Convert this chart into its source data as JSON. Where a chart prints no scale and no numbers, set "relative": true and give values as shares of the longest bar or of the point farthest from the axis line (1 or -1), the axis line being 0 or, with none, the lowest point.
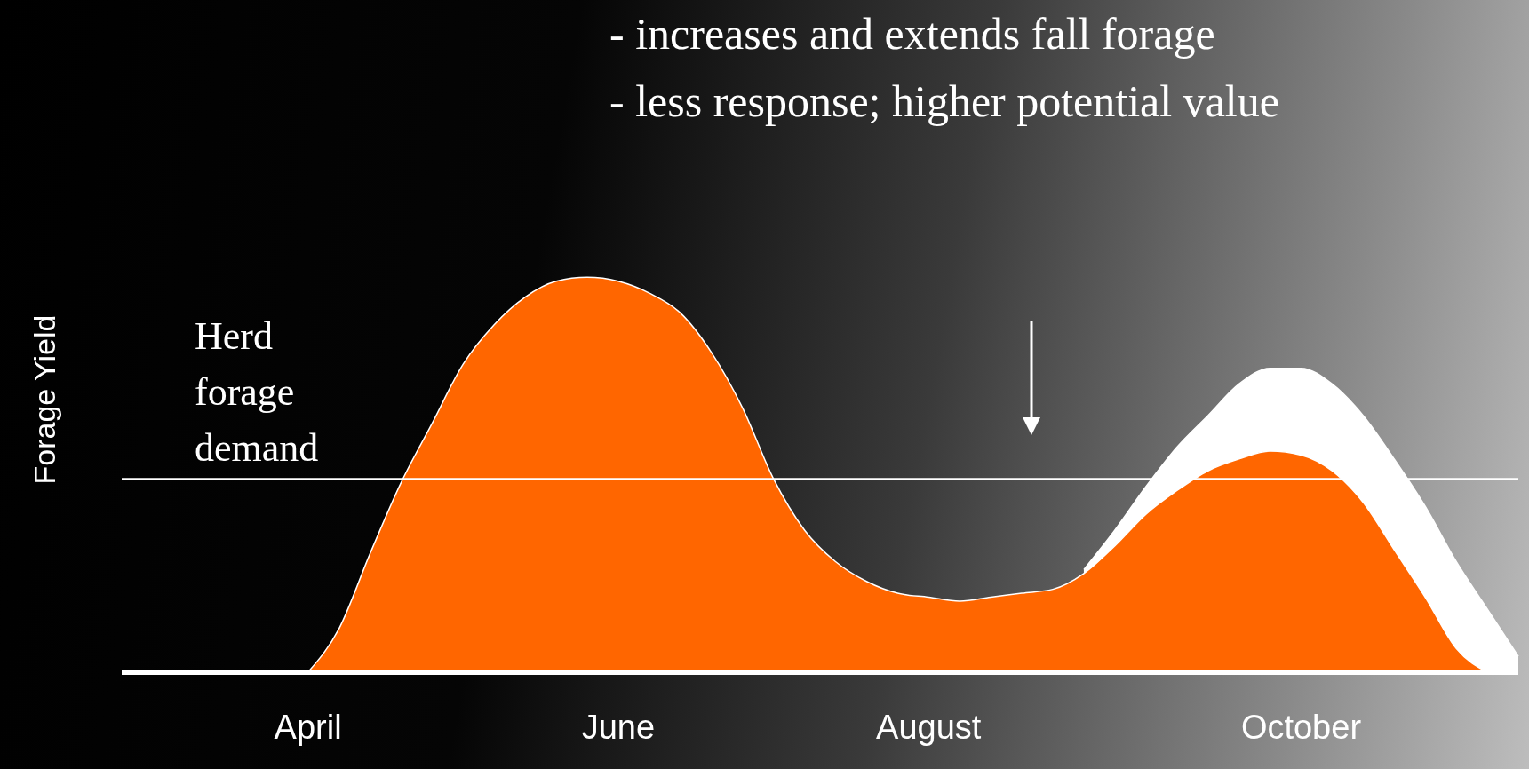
{
  "chart_data": {
    "type": "area",
    "relative": true,
    "ylabel": "Forage Yield",
    "categories": [
      null,
      null,
      null,
      null,
      null,
      null,
      "April",
      null,
      null,
      null,
      null,
      null,
      null,
      null,
      null,
      null,
      "June",
      null,
      null,
      null,
      null,
      null,
      null,
      null,
      null,
      null,
      "August",
      null,
      null,
      null,
      null,
      null,
      null,
      null,
      null,
      null,
      null,
      null,
      "October",
      null,
      null,
      null,
      null,
      null,
      null,
      null
    ],
    "series": [
      {
        "color": "#ffffff",
        "values": [
          null,
          null,
          null,
          null,
          null,
          null,
          null,
          null,
          null,
          null,
          null,
          null,
          null,
          null,
          null,
          null,
          null,
          null,
          null,
          null,
          null,
          null,
          null,
          null,
          null,
          null,
          null,
          null,
          null,
          null,
          null,
          0.26,
          0.36,
          0.47,
          0.57,
          0.65,
          0.73,
          0.77,
          0.77,
          0.73,
          0.65,
          0.54,
          0.42,
          0.28,
          0.16,
          0.04
        ]
      },
      {
        "color": "#ff6600",
        "values": [
          null,
          null,
          null,
          null,
          null,
          null,
          0,
          0.11,
          0.3,
          0.48,
          0.63,
          0.78,
          0.88,
          0.95,
          0.99,
          1,
          0.99,
          0.96,
          0.91,
          0.81,
          0.67,
          0.49,
          0.36,
          0.28,
          0.23,
          0.2,
          0.19,
          0.18,
          0.19,
          0.2,
          0.21,
          0.25,
          0.32,
          0.4,
          0.46,
          0.51,
          0.54,
          0.56,
          0.55,
          0.51,
          0.43,
          0.31,
          0.19,
          0.06,
          0,
          null
        ]
      }
    ],
    "ref_lines": [
      {
        "axis": "y",
        "value": 0.49,
        "label": "Herd forage demand",
        "color": "#ffffff"
      }
    ],
    "annotations": [
      "- increases and extends fall forage",
      "- less response; higher potential value"
    ]
  }
}
